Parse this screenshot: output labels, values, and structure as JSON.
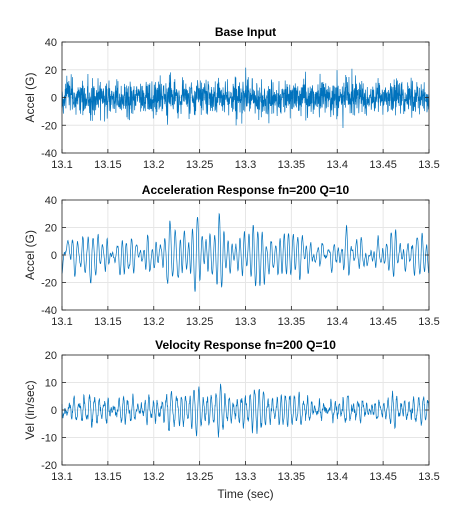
{
  "chart_data": [
    {
      "type": "line",
      "title": "Base Input",
      "xlabel": "",
      "ylabel": "Accel (G)",
      "xlim": [
        13.1,
        13.5
      ],
      "ylim": [
        -40,
        40
      ],
      "x_ticks": [
        "13.1",
        "13.15",
        "13.2",
        "13.25",
        "13.3",
        "13.35",
        "13.4",
        "13.45",
        "13.5"
      ],
      "y_ticks": [
        "40",
        "20",
        "0",
        "-20",
        "-40"
      ],
      "grid": true,
      "line_color": "#0072bd",
      "signal": {
        "kind": "broadband random vibration",
        "t_start": 13.1,
        "t_end": 13.5,
        "mean": 0,
        "peak_approx": 20
      }
    },
    {
      "type": "line",
      "title": "Acceleration Response fn=200 Q=10",
      "xlabel": "",
      "ylabel": "Accel (G)",
      "xlim": [
        13.1,
        13.5
      ],
      "ylim": [
        -40,
        40
      ],
      "x_ticks": [
        "13.1",
        "13.15",
        "13.2",
        "13.25",
        "13.3",
        "13.35",
        "13.4",
        "13.45",
        "13.5"
      ],
      "y_ticks": [
        "40",
        "20",
        "0",
        "-20",
        "-40"
      ],
      "grid": true,
      "line_color": "#0072bd",
      "signal": {
        "kind": "narrowband response",
        "dominant_frequency_hz": 200,
        "t_start": 13.1,
        "t_end": 13.5,
        "mean": 0,
        "peak_approx": 30
      }
    },
    {
      "type": "line",
      "title": "Velocity Response fn=200 Q=10",
      "xlabel": "Time (sec)",
      "ylabel": "Vel (in/sec)",
      "xlim": [
        13.1,
        13.5
      ],
      "ylim": [
        -20,
        20
      ],
      "x_ticks": [
        "13.1",
        "13.15",
        "13.2",
        "13.25",
        "13.3",
        "13.35",
        "13.4",
        "13.45",
        "13.5"
      ],
      "y_ticks": [
        "20",
        "10",
        "0",
        "-10",
        "-20"
      ],
      "grid": true,
      "line_color": "#0072bd",
      "signal": {
        "kind": "narrowband response",
        "dominant_frequency_hz": 200,
        "t_start": 13.1,
        "t_end": 13.5,
        "mean": 0,
        "peak_approx": 10
      }
    }
  ]
}
